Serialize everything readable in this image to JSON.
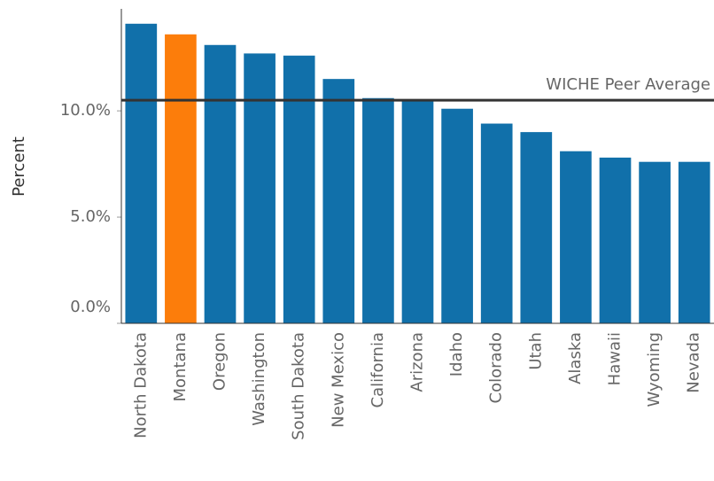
{
  "chart_data": {
    "type": "bar",
    "y_label": "Percent",
    "categories": [
      "North Dakota",
      "Montana",
      "Oregon",
      "Washington",
      "South Dakota",
      "New Mexico",
      "California",
      "Arizona",
      "Idaho",
      "Colorado",
      "Utah",
      "Alaska",
      "Hawaii",
      "Wyoming",
      "Nevada"
    ],
    "values": [
      14.1,
      13.6,
      13.1,
      12.7,
      12.6,
      11.5,
      10.6,
      10.5,
      10.1,
      9.4,
      9.0,
      8.1,
      7.8,
      7.6,
      7.6
    ],
    "colors": [
      "#1170aa",
      "#fc7d0b",
      "#1170aa",
      "#1170aa",
      "#1170aa",
      "#1170aa",
      "#1170aa",
      "#1170aa",
      "#1170aa",
      "#1170aa",
      "#1170aa",
      "#1170aa",
      "#1170aa",
      "#1170aa",
      "#1170aa"
    ],
    "ylim": [
      0,
      14.8
    ],
    "yticks": [
      {
        "value": 0,
        "label": "0.0%"
      },
      {
        "value": 5,
        "label": "5.0%"
      },
      {
        "value": 10,
        "label": "10.0%"
      }
    ],
    "reference_line": {
      "label": "WICHE Peer Average",
      "value": 10.5,
      "color": "#333333"
    }
  }
}
